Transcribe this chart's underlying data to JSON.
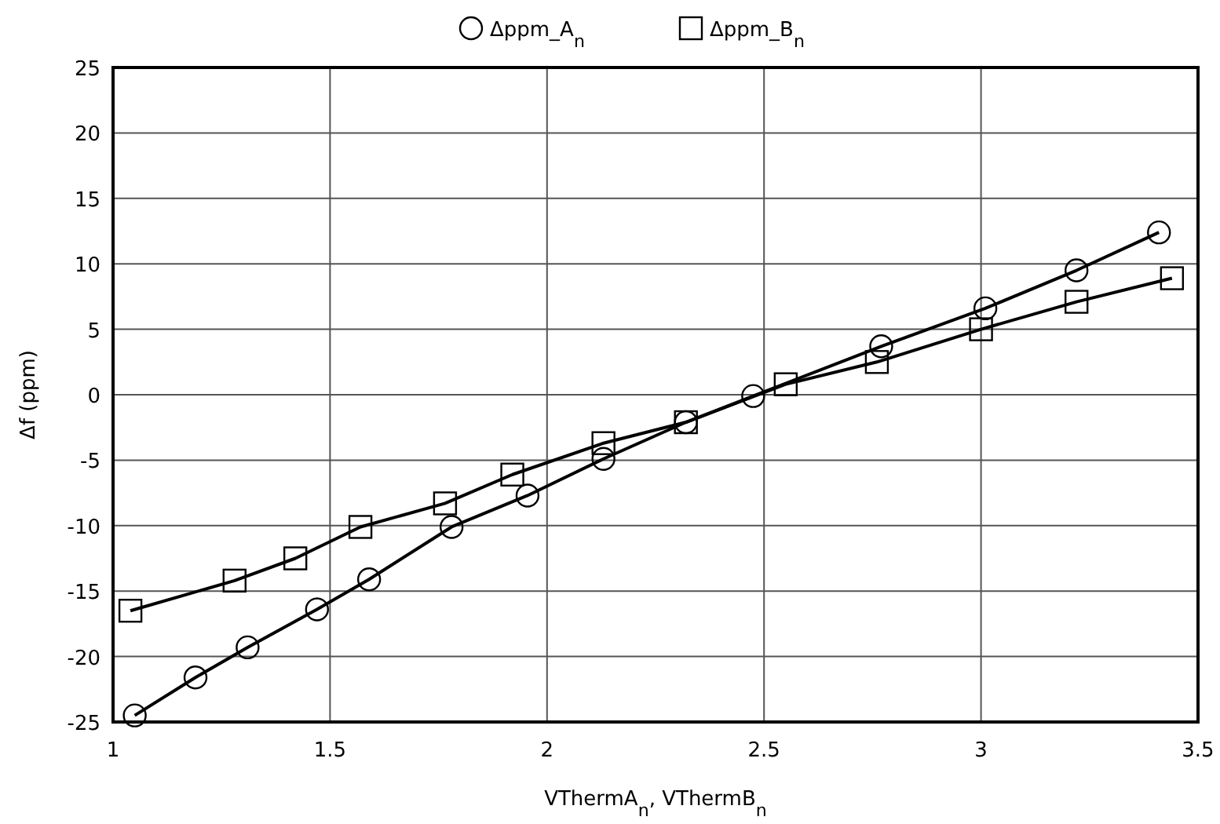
{
  "chart_data": {
    "type": "line",
    "xlabel": "VThermA$_{n}$, VThermB$_{n}$",
    "ylabel": "Δf (ppm)",
    "xlim": [
      1,
      3.5
    ],
    "xticks": [
      1,
      1.5,
      2,
      2.5,
      3,
      3.5
    ],
    "ylim": [
      -25,
      25
    ],
    "yticks": [
      -25,
      -20,
      -15,
      -10,
      -5,
      0,
      5,
      10,
      15,
      20,
      25
    ],
    "grid": true,
    "legend": "top",
    "series": [
      {
        "name": "Δppm_A$_{n}$",
        "color": "#000000",
        "marker": "circle",
        "x": [
          1.05,
          1.19,
          1.31,
          1.47,
          1.59,
          1.78,
          1.955,
          2.13,
          2.32,
          2.475,
          2.77,
          3.01,
          3.22,
          3.41
        ],
        "values": [
          -24.5,
          -21.6,
          -19.3,
          -16.4,
          -14.1,
          -10.1,
          -7.7,
          -4.9,
          -2.1,
          -0.1,
          3.7,
          6.6,
          9.5,
          12.4
        ]
      },
      {
        "name": "Δppm_B$_{n}$",
        "color": "#000000",
        "marker": "square",
        "x": [
          1.04,
          1.28,
          1.42,
          1.57,
          1.765,
          1.92,
          2.13,
          2.32,
          2.55,
          2.76,
          3.0,
          3.22,
          3.44
        ],
        "values": [
          -16.5,
          -14.2,
          -12.5,
          -10.1,
          -8.3,
          -6.1,
          -3.7,
          -2.1,
          0.8,
          2.5,
          5.0,
          7.1,
          8.9
        ]
      }
    ]
  }
}
